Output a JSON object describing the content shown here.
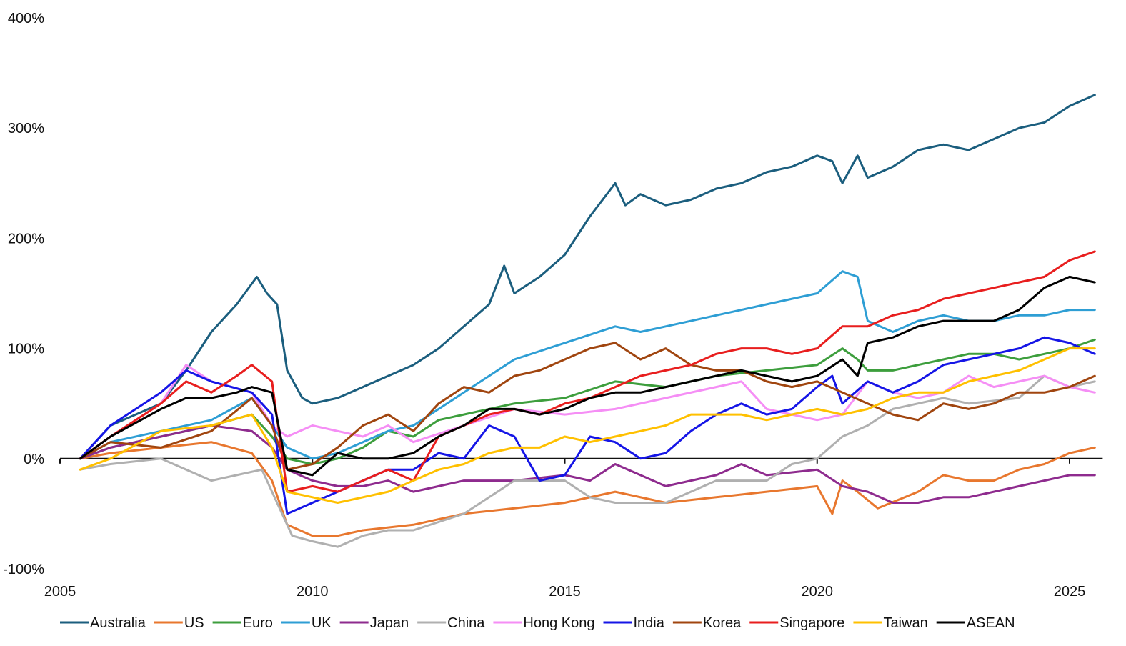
{
  "chart_data": {
    "type": "line",
    "title": "",
    "xlabel": "",
    "ylabel": "",
    "xlim": [
      2005,
      2025.6
    ],
    "ylim": [
      -100,
      400
    ],
    "grid": false,
    "legend_position": "bottom",
    "x_ticks": [
      {
        "value": 2005,
        "label": "2005"
      },
      {
        "value": 2010,
        "label": "2010"
      },
      {
        "value": 2015,
        "label": "2015"
      },
      {
        "value": 2020,
        "label": "2020"
      },
      {
        "value": 2025,
        "label": "2025"
      }
    ],
    "y_ticks": [
      {
        "value": 400,
        "label": "400%"
      },
      {
        "value": 300,
        "label": "300%"
      },
      {
        "value": 200,
        "label": "200%"
      },
      {
        "value": 100,
        "label": "100%"
      },
      {
        "value": 0,
        "label": "0%"
      },
      {
        "value": -100,
        "label": "-100%"
      }
    ],
    "series": [
      {
        "name": "Australia",
        "color": "#1b5e7e",
        "x": [
          2005.4,
          2006,
          2007,
          2007.5,
          2008,
          2008.5,
          2008.9,
          2009.1,
          2009.3,
          2009.5,
          2009.8,
          2010,
          2010.5,
          2011,
          2011.5,
          2012,
          2012.5,
          2013,
          2013.5,
          2013.8,
          2014,
          2014.5,
          2015,
          2015.5,
          2016,
          2016.2,
          2016.5,
          2017,
          2017.5,
          2018,
          2018.5,
          2019,
          2019.5,
          2020,
          2020.3,
          2020.5,
          2020.8,
          2021,
          2021.5,
          2022,
          2022.5,
          2023,
          2023.5,
          2024,
          2024.5,
          2025,
          2025.5
        ],
        "values": [
          0,
          30,
          50,
          80,
          115,
          140,
          165,
          150,
          140,
          80,
          55,
          50,
          55,
          65,
          75,
          85,
          100,
          120,
          140,
          175,
          150,
          165,
          185,
          220,
          250,
          230,
          240,
          230,
          235,
          245,
          250,
          260,
          265,
          275,
          270,
          250,
          275,
          255,
          265,
          280,
          285,
          280,
          290,
          300,
          305,
          320,
          330
        ]
      },
      {
        "name": "US",
        "color": "#e8772e",
        "x": [
          2005.4,
          2006,
          2007,
          2008,
          2008.8,
          2009.2,
          2009.5,
          2010,
          2010.5,
          2011,
          2012,
          2013,
          2014,
          2015,
          2016,
          2017,
          2018,
          2019,
          2020,
          2020.3,
          2020.5,
          2020.8,
          2021.2,
          2022,
          2022.5,
          2023,
          2023.5,
          2024,
          2024.5,
          2025,
          2025.5
        ],
        "values": [
          0,
          5,
          10,
          15,
          5,
          -20,
          -60,
          -70,
          -70,
          -65,
          -60,
          -50,
          -45,
          -40,
          -30,
          -40,
          -35,
          -30,
          -25,
          -50,
          -20,
          -30,
          -45,
          -30,
          -15,
          -20,
          -20,
          -10,
          -5,
          5,
          10
        ]
      },
      {
        "name": "Euro",
        "color": "#3d9e3d",
        "x": [
          2005.4,
          2006,
          2007,
          2008,
          2008.8,
          2009.2,
          2009.5,
          2010,
          2010.5,
          2011,
          2011.5,
          2012,
          2012.5,
          2013,
          2014,
          2015,
          2016,
          2017,
          2018,
          2019,
          2020,
          2020.5,
          2020.8,
          2021,
          2021.5,
          2022,
          2022.5,
          2023,
          2023.5,
          2024,
          2024.5,
          2025,
          2025.5
        ],
        "values": [
          0,
          10,
          20,
          30,
          40,
          20,
          0,
          -5,
          0,
          10,
          25,
          20,
          35,
          40,
          50,
          55,
          70,
          65,
          75,
          80,
          85,
          100,
          90,
          80,
          80,
          85,
          90,
          95,
          95,
          90,
          95,
          100,
          108
        ]
      },
      {
        "name": "UK",
        "color": "#2e9ed4",
        "x": [
          2005.4,
          2006,
          2007,
          2008,
          2008.8,
          2009.2,
          2009.5,
          2010,
          2010.5,
          2011,
          2011.5,
          2012,
          2012.5,
          2013,
          2013.5,
          2014,
          2015,
          2016,
          2016.5,
          2017,
          2018,
          2019,
          2020,
          2020.5,
          2020.8,
          2021,
          2021.5,
          2022,
          2022.5,
          2023,
          2023.5,
          2024,
          2024.5,
          2025,
          2025.5
        ],
        "values": [
          0,
          15,
          25,
          35,
          55,
          30,
          10,
          0,
          5,
          15,
          25,
          30,
          45,
          60,
          75,
          90,
          105,
          120,
          115,
          120,
          130,
          140,
          150,
          170,
          165,
          125,
          115,
          125,
          130,
          125,
          125,
          130,
          130,
          135,
          135
        ]
      },
      {
        "name": "Japan",
        "color": "#8e2b8e",
        "x": [
          2005.4,
          2006,
          2007,
          2008,
          2008.8,
          2009.2,
          2009.5,
          2010,
          2010.5,
          2011,
          2011.5,
          2012,
          2012.5,
          2013,
          2014,
          2015,
          2015.5,
          2016,
          2016.5,
          2017,
          2018,
          2018.5,
          2019,
          2020,
          2020.5,
          2021,
          2021.5,
          2022,
          2022.5,
          2023,
          2023.5,
          2024,
          2024.5,
          2025,
          2025.5
        ],
        "values": [
          0,
          10,
          20,
          30,
          25,
          10,
          -10,
          -20,
          -25,
          -25,
          -20,
          -30,
          -25,
          -20,
          -20,
          -15,
          -20,
          -5,
          -15,
          -25,
          -15,
          -5,
          -15,
          -10,
          -25,
          -30,
          -40,
          -40,
          -35,
          -35,
          -30,
          -25,
          -20,
          -15,
          -15
        ]
      },
      {
        "name": "China",
        "color": "#b0b0b0",
        "x": [
          2005.4,
          2006,
          2007,
          2008,
          2008.5,
          2009,
          2009.3,
          2009.6,
          2010,
          2010.5,
          2011,
          2011.5,
          2012,
          2013,
          2014,
          2015,
          2015.5,
          2016,
          2017,
          2018,
          2019,
          2019.5,
          2020,
          2020.5,
          2021,
          2021.5,
          2022,
          2022.5,
          2023,
          2024,
          2024.5,
          2025,
          2025.5
        ],
        "values": [
          -10,
          -5,
          0,
          -20,
          -15,
          -10,
          -40,
          -70,
          -75,
          -80,
          -70,
          -65,
          -65,
          -50,
          -20,
          -20,
          -35,
          -40,
          -40,
          -20,
          -20,
          -5,
          0,
          20,
          30,
          45,
          50,
          55,
          50,
          55,
          75,
          65,
          70
        ]
      },
      {
        "name": "Hong Kong",
        "color": "#f58ef5",
        "x": [
          2005.4,
          2006,
          2007,
          2007.5,
          2008,
          2008.8,
          2009.2,
          2009.5,
          2010,
          2010.5,
          2011,
          2011.5,
          2012,
          2013,
          2014,
          2015,
          2016,
          2017,
          2018,
          2018.5,
          2019,
          2019.5,
          2020,
          2020.5,
          2021,
          2021.5,
          2022,
          2022.5,
          2023,
          2023.5,
          2024,
          2024.5,
          2025,
          2025.5
        ],
        "values": [
          0,
          20,
          50,
          85,
          70,
          60,
          30,
          20,
          30,
          25,
          20,
          30,
          15,
          30,
          45,
          40,
          45,
          55,
          65,
          70,
          45,
          40,
          35,
          40,
          70,
          60,
          55,
          60,
          75,
          65,
          70,
          75,
          65,
          60
        ]
      },
      {
        "name": "India",
        "color": "#1515e6",
        "x": [
          2005.4,
          2006,
          2007,
          2007.5,
          2008,
          2008.8,
          2009.2,
          2009.5,
          2010,
          2010.5,
          2011,
          2011.5,
          2012,
          2012.5,
          2013,
          2013.5,
          2014,
          2014.5,
          2015,
          2015.5,
          2016,
          2016.5,
          2017,
          2017.5,
          2018,
          2018.5,
          2019,
          2019.5,
          2020,
          2020.3,
          2020.5,
          2021,
          2021.5,
          2022,
          2022.5,
          2023,
          2023.5,
          2024,
          2024.5,
          2025,
          2025.5
        ],
        "values": [
          0,
          30,
          60,
          80,
          70,
          60,
          40,
          -50,
          -40,
          -30,
          -20,
          -10,
          -10,
          5,
          0,
          30,
          20,
          -20,
          -15,
          20,
          15,
          0,
          5,
          25,
          40,
          50,
          40,
          45,
          65,
          75,
          50,
          70,
          60,
          70,
          85,
          90,
          95,
          100,
          110,
          105,
          95
        ]
      },
      {
        "name": "Korea",
        "color": "#a0450f",
        "x": [
          2005.4,
          2006,
          2007,
          2008,
          2008.8,
          2009.2,
          2009.5,
          2010,
          2010.5,
          2011,
          2011.5,
          2012,
          2012.5,
          2013,
          2013.5,
          2014,
          2014.5,
          2015,
          2015.5,
          2016,
          2016.5,
          2017,
          2017.5,
          2018,
          2018.5,
          2019,
          2019.5,
          2020,
          2020.5,
          2021,
          2021.5,
          2022,
          2022.5,
          2023,
          2023.5,
          2024,
          2024.5,
          2025,
          2025.5
        ],
        "values": [
          0,
          15,
          10,
          25,
          55,
          30,
          -10,
          -5,
          10,
          30,
          40,
          25,
          50,
          65,
          60,
          75,
          80,
          90,
          100,
          105,
          90,
          100,
          85,
          80,
          80,
          70,
          65,
          70,
          60,
          50,
          40,
          35,
          50,
          45,
          50,
          60,
          60,
          65,
          75
        ]
      },
      {
        "name": "Singapore",
        "color": "#e81e1e",
        "x": [
          2005.4,
          2006,
          2007,
          2007.5,
          2008,
          2008.5,
          2008.8,
          2009.2,
          2009.5,
          2010,
          2010.5,
          2011,
          2011.5,
          2012,
          2012.5,
          2013,
          2013.5,
          2014,
          2014.5,
          2015,
          2015.5,
          2016,
          2016.5,
          2017,
          2017.5,
          2018,
          2018.5,
          2019,
          2019.5,
          2020,
          2020.5,
          2021,
          2021.5,
          2022,
          2022.5,
          2023,
          2023.5,
          2024,
          2024.5,
          2025,
          2025.5
        ],
        "values": [
          0,
          20,
          50,
          70,
          60,
          75,
          85,
          70,
          -30,
          -25,
          -30,
          -20,
          -10,
          -20,
          20,
          30,
          40,
          45,
          40,
          50,
          55,
          65,
          75,
          80,
          85,
          95,
          100,
          100,
          95,
          100,
          120,
          120,
          130,
          135,
          145,
          150,
          155,
          160,
          165,
          180,
          188
        ]
      },
      {
        "name": "Taiwan",
        "color": "#ffc000",
        "x": [
          2005.4,
          2006,
          2007,
          2008,
          2008.8,
          2009.2,
          2009.5,
          2010,
          2010.5,
          2011,
          2011.5,
          2012,
          2012.5,
          2013,
          2013.5,
          2014,
          2014.5,
          2015,
          2015.5,
          2016,
          2016.5,
          2017,
          2017.5,
          2018,
          2018.5,
          2019,
          2019.5,
          2020,
          2020.5,
          2021,
          2021.5,
          2022,
          2022.5,
          2023,
          2023.5,
          2024,
          2024.5,
          2025,
          2025.5
        ],
        "values": [
          -10,
          0,
          25,
          30,
          40,
          10,
          -30,
          -35,
          -40,
          -35,
          -30,
          -20,
          -10,
          -5,
          5,
          10,
          10,
          20,
          15,
          20,
          25,
          30,
          40,
          40,
          40,
          35,
          40,
          45,
          40,
          45,
          55,
          60,
          60,
          70,
          75,
          80,
          90,
          100,
          100
        ]
      },
      {
        "name": "ASEAN",
        "color": "#000000",
        "x": [
          2005.4,
          2006,
          2007,
          2007.5,
          2008,
          2008.5,
          2008.8,
          2009.2,
          2009.5,
          2010,
          2010.5,
          2011,
          2011.5,
          2012,
          2012.5,
          2013,
          2013.5,
          2014,
          2014.5,
          2015,
          2015.5,
          2016,
          2016.5,
          2017,
          2017.5,
          2018,
          2018.5,
          2019,
          2019.5,
          2020,
          2020.5,
          2020.8,
          2021,
          2021.5,
          2022,
          2022.5,
          2023,
          2023.5,
          2024,
          2024.5,
          2025,
          2025.5
        ],
        "values": [
          0,
          20,
          45,
          55,
          55,
          60,
          65,
          60,
          -10,
          -15,
          5,
          0,
          0,
          5,
          20,
          30,
          45,
          45,
          40,
          45,
          55,
          60,
          60,
          65,
          70,
          75,
          80,
          75,
          70,
          75,
          90,
          75,
          105,
          110,
          120,
          125,
          125,
          125,
          135,
          155,
          165,
          160
        ]
      }
    ]
  }
}
